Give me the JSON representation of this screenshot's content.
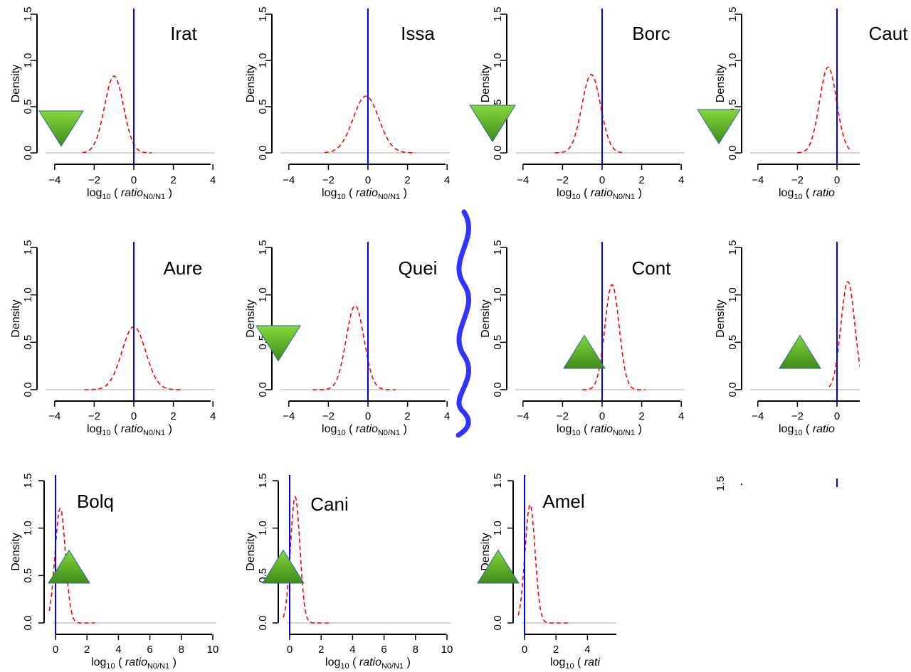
{
  "chart_data": [
    {
      "type": "line",
      "title": "Irat",
      "xlabel": "log10 ( ratio N0/N1 )",
      "ylabel": "Density",
      "xlim": [
        -4.3,
        4.3
      ],
      "ylim": [
        0,
        1.5
      ],
      "xticks": [
        -4,
        -2,
        0,
        2,
        4
      ],
      "yticks": [
        0.0,
        0.5,
        1.0,
        1.5
      ],
      "vline": 0,
      "marker": "down",
      "series": [
        {
          "curve": "normal",
          "mean": -1.0,
          "sd": 0.48,
          "xmin": -2.6,
          "xmax": 0.9
        }
      ]
    },
    {
      "type": "line",
      "title": "Issa",
      "xlabel": "log10 ( ratio N0/N1 )",
      "ylabel": "Density",
      "xlim": [
        -4.3,
        4.3
      ],
      "ylim": [
        0,
        1.5
      ],
      "xticks": [
        -4,
        -2,
        0,
        2,
        4
      ],
      "yticks": [
        0.0,
        0.5,
        1.0,
        1.5
      ],
      "vline": 0,
      "marker": null,
      "series": [
        {
          "curve": "normal",
          "mean": -0.1,
          "sd": 0.65,
          "xmin": -2.2,
          "xmax": 2.4
        }
      ]
    },
    {
      "type": "line",
      "title": "Borc",
      "xlabel": "log10 ( ratio N0/N1 )",
      "ylabel": "Density",
      "xlim": [
        -4.3,
        4.3
      ],
      "ylim": [
        0,
        1.5
      ],
      "xticks": [
        -4,
        -2,
        0,
        2,
        4
      ],
      "yticks": [
        0.0,
        0.5,
        1.0,
        1.5
      ],
      "vline": 0,
      "marker": "down",
      "series": [
        {
          "curve": "normal",
          "mean": -0.55,
          "sd": 0.47,
          "xmin": -2.4,
          "xmax": 1.0
        }
      ]
    },
    {
      "type": "line",
      "title": "Caut",
      "xlabel": "log10 ( ratio",
      "ylabel": "Density",
      "xlim": [
        -4.3,
        1.2
      ],
      "ylim": [
        0,
        1.5
      ],
      "xticks": [
        -4,
        -2,
        0
      ],
      "yticks": [
        0.0,
        0.5,
        1.0,
        1.5
      ],
      "vline": 0,
      "marker": "down",
      "series": [
        {
          "curve": "normal",
          "mean": -0.45,
          "sd": 0.43,
          "xmin": -2.0,
          "xmax": 0.7
        }
      ]
    },
    {
      "type": "line",
      "title": "Aure",
      "xlabel": "log10 ( ratio N0/N1 )",
      "ylabel": "Density",
      "xlim": [
        -4.3,
        4.3
      ],
      "ylim": [
        0,
        1.5
      ],
      "xticks": [
        -4,
        -2,
        0,
        2,
        4
      ],
      "yticks": [
        0.0,
        0.5,
        1.0,
        1.5
      ],
      "vline": 0,
      "marker": null,
      "series": [
        {
          "curve": "normal",
          "mean": 0.0,
          "sd": 0.6,
          "xmin": -2.5,
          "xmax": 2.5
        }
      ]
    },
    {
      "type": "line",
      "title": "Quei",
      "xlabel": "log10 ( ratio N0/N1 )",
      "ylabel": "Density",
      "xlim": [
        -4.3,
        4.3
      ],
      "ylim": [
        0,
        1.5
      ],
      "xticks": [
        -4,
        -2,
        0,
        2,
        4
      ],
      "yticks": [
        0.0,
        0.5,
        1.0,
        1.5
      ],
      "vline": 0,
      "marker": "down",
      "series": [
        {
          "curve": "normal",
          "mean": -0.65,
          "sd": 0.45,
          "xmin": -2.8,
          "xmax": 1.4
        }
      ]
    },
    {
      "type": "line",
      "title": "Cont",
      "xlabel": "log10 ( ratio N0/N1 )",
      "ylabel": "Density",
      "xlim": [
        -4.3,
        4.3
      ],
      "ylim": [
        0,
        1.5
      ],
      "xticks": [
        -4,
        -2,
        0,
        2,
        4
      ],
      "yticks": [
        0.0,
        0.5,
        1.0,
        1.5
      ],
      "vline": 0,
      "marker": "up",
      "series": [
        {
          "curve": "normal",
          "mean": 0.5,
          "sd": 0.36,
          "xmin": -1.0,
          "xmax": 2.2
        }
      ]
    },
    {
      "type": "line",
      "title": "",
      "xlabel": "log10 ( ratio",
      "ylabel": "Density",
      "xlim": [
        -4.3,
        1.2
      ],
      "ylim": [
        0,
        1.5
      ],
      "xticks": [
        -4,
        -2,
        0
      ],
      "yticks": [
        0.0,
        0.5,
        1.0,
        1.5
      ],
      "vline": 0,
      "marker": "up",
      "series": [
        {
          "curve": "normal",
          "mean": 0.55,
          "sd": 0.35,
          "xmin": -0.4,
          "xmax": 1.2
        }
      ]
    },
    {
      "type": "line",
      "title": "Bolq",
      "xlabel": "log10 ( ratio N0/N1 )",
      "ylabel": "Density",
      "xlim": [
        -0.4,
        10.4
      ],
      "ylim": [
        0,
        1.5
      ],
      "xticks": [
        0,
        2,
        4,
        6,
        8,
        10
      ],
      "yticks": [
        0.0,
        0.5,
        1.0,
        1.5
      ],
      "vline": 0,
      "marker": "up",
      "series": [
        {
          "curve": "normal",
          "mean": 0.3,
          "sd": 0.33,
          "xmin": -0.4,
          "xmax": 2.5
        }
      ]
    },
    {
      "type": "line",
      "title": "Cani",
      "xlabel": "log10 ( ratio N0/N1 )",
      "ylabel": "Density",
      "xlim": [
        -0.4,
        10.4
      ],
      "ylim": [
        0,
        1.5
      ],
      "xticks": [
        0,
        2,
        4,
        6,
        8,
        10
      ],
      "yticks": [
        0.0,
        0.5,
        1.0,
        1.5
      ],
      "vline": 0,
      "marker": "up",
      "series": [
        {
          "curve": "normal",
          "mean": 0.35,
          "sd": 0.3,
          "xmin": -0.4,
          "xmax": 2.5
        }
      ]
    },
    {
      "type": "line",
      "title": "Amel",
      "xlabel": "log10 ( rati",
      "ylabel": "Density",
      "xlim": [
        -0.4,
        5.9
      ],
      "ylim": [
        0,
        1.5
      ],
      "xticks": [
        0,
        2,
        4
      ],
      "yticks": [
        0.0,
        0.5,
        1.0,
        1.5
      ],
      "vline": 0,
      "marker": "up",
      "series": [
        {
          "curve": "normal",
          "mean": 0.35,
          "sd": 0.32,
          "xmin": -0.4,
          "xmax": 2.8
        }
      ]
    }
  ],
  "style": {
    "density_color": "#ff0000",
    "vline_color": "#0000ff",
    "marker_fill_light": "#86d83a",
    "marker_fill_dark": "#3f8a1c",
    "separator_color": "#3333ff"
  }
}
